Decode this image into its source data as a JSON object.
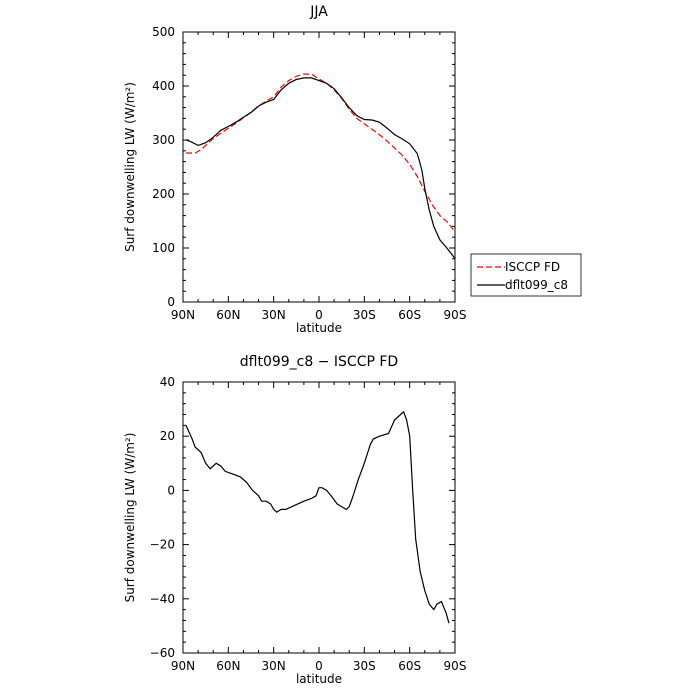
{
  "chart_data": [
    {
      "type": "line",
      "title": "JJA",
      "xlabel": "latitude",
      "ylabel": "Surf downwelling LW (W/m²)",
      "xlim": [
        -90,
        90
      ],
      "ylim": [
        0,
        500
      ],
      "x_tick_values": [
        -90,
        -60,
        -30,
        0,
        30,
        60,
        90
      ],
      "x_tick_labels": [
        "90N",
        "60N",
        "30N",
        "0",
        "30S",
        "60S",
        "90S"
      ],
      "y_tick_values": [
        0,
        100,
        200,
        300,
        400,
        500
      ],
      "y_tick_labels": [
        "0",
        "100",
        "200",
        "300",
        "400",
        "500"
      ],
      "legend_position": "right",
      "series": [
        {
          "name": "ISCCP FD",
          "color": "#ff0000",
          "dash": "dashed",
          "points": [
            [
              -88,
              276
            ],
            [
              -82,
              276
            ],
            [
              -78,
              282
            ],
            [
              -70,
              303
            ],
            [
              -62,
              318
            ],
            [
              -55,
              331
            ],
            [
              -48,
              345
            ],
            [
              -40,
              363
            ],
            [
              -35,
              372
            ],
            [
              -30,
              380
            ],
            [
              -25,
              398
            ],
            [
              -20,
              410
            ],
            [
              -15,
              418
            ],
            [
              -10,
              422
            ],
            [
              -5,
              422
            ],
            [
              0,
              413
            ],
            [
              5,
              405
            ],
            [
              10,
              393
            ],
            [
              15,
              377
            ],
            [
              20,
              357
            ],
            [
              25,
              340
            ],
            [
              30,
              330
            ],
            [
              35,
              320
            ],
            [
              40,
              310
            ],
            [
              45,
              298
            ],
            [
              50,
              285
            ],
            [
              55,
              272
            ],
            [
              60,
              255
            ],
            [
              65,
              233
            ],
            [
              70,
              205
            ],
            [
              75,
              180
            ],
            [
              80,
              160
            ],
            [
              85,
              148
            ],
            [
              90,
              130
            ]
          ]
        },
        {
          "name": "dflt099_c8",
          "color": "#000000",
          "dash": "solid",
          "points": [
            [
              -88,
              300
            ],
            [
              -85,
              297
            ],
            [
              -80,
              290
            ],
            [
              -75,
              295
            ],
            [
              -70,
              305
            ],
            [
              -65,
              318
            ],
            [
              -60,
              325
            ],
            [
              -55,
              333
            ],
            [
              -50,
              342
            ],
            [
              -45,
              351
            ],
            [
              -40,
              363
            ],
            [
              -35,
              370
            ],
            [
              -30,
              375
            ],
            [
              -25,
              393
            ],
            [
              -20,
              405
            ],
            [
              -15,
              412
            ],
            [
              -10,
              415
            ],
            [
              -5,
              415
            ],
            [
              0,
              410
            ],
            [
              5,
              405
            ],
            [
              10,
              395
            ],
            [
              15,
              378
            ],
            [
              20,
              360
            ],
            [
              25,
              345
            ],
            [
              30,
              338
            ],
            [
              35,
              337
            ],
            [
              40,
              333
            ],
            [
              45,
              322
            ],
            [
              50,
              310
            ],
            [
              55,
              302
            ],
            [
              60,
              293
            ],
            [
              65,
              275
            ],
            [
              68,
              245
            ],
            [
              70,
              210
            ],
            [
              73,
              170
            ],
            [
              76,
              140
            ],
            [
              80,
              115
            ],
            [
              84,
              102
            ],
            [
              88,
              88
            ],
            [
              90,
              80
            ]
          ]
        }
      ]
    },
    {
      "type": "line",
      "title": "dflt099_c8 − ISCCP FD",
      "xlabel": "latitude",
      "ylabel": "Surf downwelling LW (W/m²)",
      "xlim": [
        -90,
        90
      ],
      "ylim": [
        -60,
        40
      ],
      "x_tick_values": [
        -90,
        -60,
        -30,
        0,
        30,
        60,
        90
      ],
      "x_tick_labels": [
        "90N",
        "60N",
        "30N",
        "0",
        "30S",
        "60S",
        "90S"
      ],
      "y_tick_values": [
        -60,
        -40,
        -20,
        0,
        20,
        40
      ],
      "y_tick_labels": [
        "−60",
        "−40",
        "−20",
        "0",
        "20",
        "40"
      ],
      "series": [
        {
          "color": "#000000",
          "dash": "solid",
          "points": [
            [
              -88,
              24
            ],
            [
              -84,
              19
            ],
            [
              -82,
              16
            ],
            [
              -78,
              14
            ],
            [
              -75,
              10
            ],
            [
              -72,
              8
            ],
            [
              -68,
              10
            ],
            [
              -65,
              9
            ],
            [
              -62,
              7
            ],
            [
              -57,
              6
            ],
            [
              -52,
              5
            ],
            [
              -48,
              3
            ],
            [
              -44,
              0
            ],
            [
              -40,
              -2
            ],
            [
              -38,
              -4
            ],
            [
              -35,
              -4
            ],
            [
              -32,
              -5
            ],
            [
              -30,
              -7
            ],
            [
              -28,
              -8
            ],
            [
              -25,
              -7
            ],
            [
              -22,
              -7
            ],
            [
              -18,
              -6
            ],
            [
              -14,
              -5
            ],
            [
              -10,
              -4
            ],
            [
              -5,
              -3
            ],
            [
              -2,
              -2
            ],
            [
              0,
              1
            ],
            [
              2,
              1
            ],
            [
              5,
              0
            ],
            [
              8,
              -2
            ],
            [
              12,
              -5
            ],
            [
              15,
              -6
            ],
            [
              18,
              -7
            ],
            [
              20,
              -6
            ],
            [
              22,
              -3
            ],
            [
              26,
              4
            ],
            [
              30,
              10
            ],
            [
              34,
              17
            ],
            [
              36,
              19
            ],
            [
              40,
              20
            ],
            [
              46,
              21
            ],
            [
              50,
              26
            ],
            [
              54,
              28
            ],
            [
              56,
              29
            ],
            [
              58,
              26
            ],
            [
              60,
              20
            ],
            [
              62,
              0
            ],
            [
              64,
              -18
            ],
            [
              67,
              -30
            ],
            [
              70,
              -37
            ],
            [
              73,
              -42
            ],
            [
              76,
              -44
            ],
            [
              78,
              -42
            ],
            [
              81,
              -41
            ],
            [
              84,
              -45
            ],
            [
              86,
              -49
            ]
          ]
        }
      ]
    }
  ]
}
